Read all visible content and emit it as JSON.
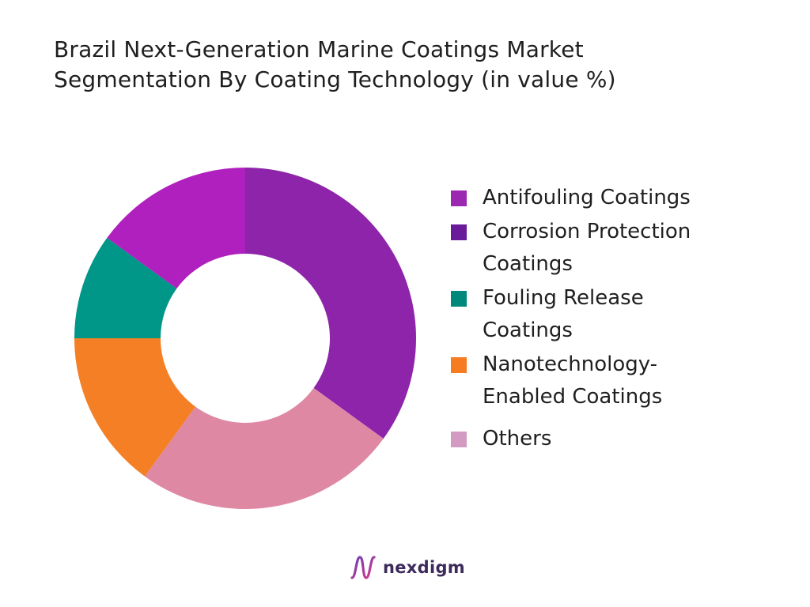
{
  "chart_data": {
    "type": "pie",
    "donut": true,
    "title_lines": [
      "Brazil Next-Generation Marine Coatings Market",
      "Segmentation By Coating Technology (in value %)"
    ],
    "series": [
      {
        "name": "Antifouling Coatings",
        "value": 35,
        "color": "#8E24AA"
      },
      {
        "name": "Corrosion Protection\nCoatings",
        "value": 25,
        "color": "#DE88A4"
      },
      {
        "name": "Fouling Release\nCoatings",
        "value": 15,
        "color": "#F57F25"
      },
      {
        "name": "Nanotechnology-\nEnabled Coatings",
        "value": 10,
        "color": "#009688"
      },
      {
        "name": "Others",
        "value": 15,
        "color": "#B020BE"
      }
    ],
    "legend_swatch_colors": [
      "#9C27B0",
      "#6A1B9A",
      "#00897B",
      "#F57C20",
      "#D49BC2"
    ],
    "legend_position": "right"
  },
  "brand": {
    "name": "nexdigm",
    "logo_icon": "nexdigm-wave-icon"
  }
}
